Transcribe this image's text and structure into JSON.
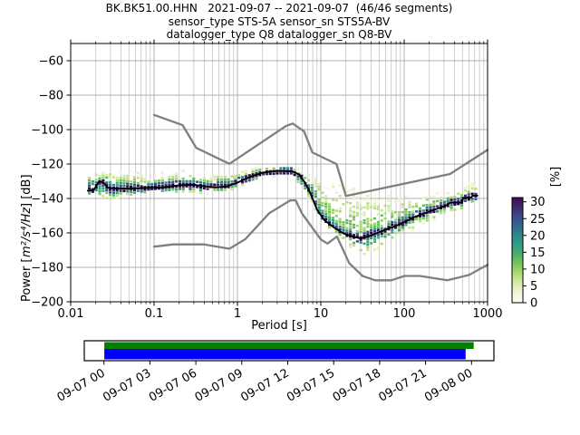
{
  "title": {
    "line1": "BK.BK51.00.HHN   2021-09-07 -- 2021-09-07  (46/46 segments)",
    "line2": "sensor_type STS-5A sensor_sn STS5A-BV",
    "line3": "datalogger_type Q8 datalogger_sn Q8-BV"
  },
  "axes": {
    "xlabel": "Period [s]",
    "ylabel_prefix": "Power [",
    "ylabel_math": "m²/s⁴/Hz",
    "ylabel_suffix": "] [dB]",
    "x_ticks": [
      {
        "value": 0.01,
        "label": "0.01"
      },
      {
        "value": 0.1,
        "label": "0.1"
      },
      {
        "value": 1,
        "label": "1"
      },
      {
        "value": 10,
        "label": "10"
      },
      {
        "value": 100,
        "label": "100"
      },
      {
        "value": 1000,
        "label": "1000"
      }
    ],
    "y_ticks": [
      {
        "value": -60,
        "label": "−60"
      },
      {
        "value": -80,
        "label": "−80"
      },
      {
        "value": -100,
        "label": "−100"
      },
      {
        "value": -120,
        "label": "−120"
      },
      {
        "value": -140,
        "label": "−140"
      },
      {
        "value": -160,
        "label": "−160"
      },
      {
        "value": -180,
        "label": "−180"
      },
      {
        "value": -200,
        "label": "−200"
      }
    ],
    "grid_color_major": "#b0b0b0",
    "grid_color_minor": "#c3c3c3"
  },
  "colorbar": {
    "label": "[%]",
    "ticks": [
      {
        "value": 30,
        "label": "30"
      },
      {
        "value": 25,
        "label": "25"
      },
      {
        "value": 20,
        "label": "20"
      },
      {
        "value": 15,
        "label": "15"
      },
      {
        "value": 10,
        "label": "10"
      },
      {
        "value": 5,
        "label": "5"
      },
      {
        "value": 0,
        "label": "0"
      }
    ],
    "max_pct": 31.3,
    "gradient_bottom_to_top": [
      "#fdfdf0",
      "#f0f6d8",
      "#d8ecae",
      "#afdb76",
      "#7cc65c",
      "#4cb06b",
      "#2f9f81",
      "#2b8b8b",
      "#336890",
      "#3a4d8c",
      "#3c2b68",
      "#430b54"
    ]
  },
  "timeline": {
    "tick_labels": [
      "09-07 00",
      "09-07 03",
      "09-07 06",
      "09-07 09",
      "09-07 12",
      "09-07 15",
      "09-07 18",
      "09-07 21",
      "09-08 00"
    ],
    "bars": [
      {
        "name": "covered-timerange",
        "color": "#007f00",
        "start_frac": 0.001,
        "end_frac": 1.006
      },
      {
        "name": "data-segments",
        "color": "#0000ff",
        "start_frac": 0.001,
        "end_frac": 0.984
      }
    ]
  },
  "chart_data": {
    "type": "heatmap",
    "title": "PPSD probabilistic power spectral density, BK.BK51.00.HHN 2021-09-07, 46/46 segments",
    "xlabel": "Period [s]",
    "ylabel": "Power [m2/s4/Hz] [dB]",
    "xscale": "log",
    "xlim": [
      0.01,
      1000
    ],
    "ylim": [
      -200,
      -50
    ],
    "grid": true,
    "probability_max_pct": 31.3,
    "series": [
      {
        "name": "mean_psd",
        "color": "#000000",
        "points": [
          [
            0.016,
            -135.5
          ],
          [
            0.019,
            -135
          ],
          [
            0.022,
            -130
          ],
          [
            0.025,
            -131
          ],
          [
            0.028,
            -133.8
          ],
          [
            0.035,
            -134.3
          ],
          [
            0.05,
            -134.3
          ],
          [
            0.07,
            -134
          ],
          [
            0.1,
            -133.8
          ],
          [
            0.14,
            -133.3
          ],
          [
            0.2,
            -132.3
          ],
          [
            0.3,
            -132
          ],
          [
            0.4,
            -133
          ],
          [
            0.55,
            -133.5
          ],
          [
            0.75,
            -133
          ],
          [
            1.0,
            -130.8
          ],
          [
            1.4,
            -127.5
          ],
          [
            2.0,
            -125
          ],
          [
            3.0,
            -124
          ],
          [
            4.5,
            -124.2
          ],
          [
            5.5,
            -126
          ],
          [
            6.5,
            -131
          ],
          [
            7.5,
            -137
          ],
          [
            9.0,
            -146.5
          ],
          [
            11,
            -152.5
          ],
          [
            14,
            -156.5
          ],
          [
            19,
            -160.5
          ],
          [
            25,
            -162.3
          ],
          [
            30,
            -163.2
          ],
          [
            40,
            -161.5
          ],
          [
            55,
            -158.8
          ],
          [
            85,
            -155.3
          ],
          [
            140,
            -150.3
          ],
          [
            230,
            -146.6
          ],
          [
            320,
            -144
          ],
          [
            355,
            -142.4
          ],
          [
            495,
            -142.3
          ],
          [
            510,
            -139.6
          ],
          [
            640,
            -139.4
          ],
          [
            655,
            -138.4
          ],
          [
            755,
            -138.3
          ]
        ]
      },
      {
        "name": "noise_model_high_NHNM",
        "color": "#7f7f7f",
        "points": [
          [
            0.1,
            -91.5
          ],
          [
            0.22,
            -97.4
          ],
          [
            0.32,
            -110.6
          ],
          [
            0.8,
            -119.9
          ],
          [
            3.8,
            -98.0
          ],
          [
            4.6,
            -96.5
          ],
          [
            6.3,
            -101.0
          ],
          [
            7.9,
            -113.2
          ],
          [
            15.4,
            -120.0
          ],
          [
            20,
            -138.5
          ],
          [
            354.8,
            -125.8
          ],
          [
            1000,
            -111.8
          ]
        ]
      },
      {
        "name": "noise_model_low_NLNM",
        "color": "#7f7f7f",
        "points": [
          [
            0.1,
            -168.0
          ],
          [
            0.17,
            -166.7
          ],
          [
            0.4,
            -166.7
          ],
          [
            0.8,
            -169.2
          ],
          [
            1.24,
            -163.7
          ],
          [
            2.4,
            -148.6
          ],
          [
            4.3,
            -141.1
          ],
          [
            5.0,
            -141.1
          ],
          [
            6.0,
            -149.0
          ],
          [
            10.0,
            -163.8
          ],
          [
            12.0,
            -166.2
          ],
          [
            15.6,
            -162.1
          ],
          [
            21.9,
            -177.5
          ],
          [
            31.6,
            -185.0
          ],
          [
            45,
            -187.5
          ],
          [
            70,
            -187.5
          ],
          [
            101,
            -185.0
          ],
          [
            154,
            -185.0
          ],
          [
            328,
            -187.5
          ],
          [
            600,
            -184.4
          ],
          [
            1000,
            -178.5
          ]
        ]
      }
    ],
    "histogram_envelope": {
      "columns": [
        "period_s",
        "db_low",
        "db_high",
        "core_low",
        "core_high"
      ],
      "rows": [
        [
          0.016,
          -139,
          -127,
          -137,
          -131
        ],
        [
          0.022,
          -141,
          -124,
          -136,
          -129
        ],
        [
          0.03,
          -141,
          -123,
          -137,
          -130
        ],
        [
          0.05,
          -139,
          -124,
          -136,
          -131
        ],
        [
          0.08,
          -138,
          -126,
          -136,
          -132
        ],
        [
          0.13,
          -137,
          -125,
          -135,
          -131
        ],
        [
          0.2,
          -137,
          -124,
          -134.5,
          -130
        ],
        [
          0.3,
          -137.5,
          -124,
          -134.5,
          -130
        ],
        [
          0.5,
          -138,
          -126,
          -135,
          -131
        ],
        [
          0.8,
          -136,
          -126,
          -133.5,
          -129.5
        ],
        [
          1.2,
          -133,
          -124.5,
          -131,
          -127
        ],
        [
          2,
          -128.5,
          -121.5,
          -126.5,
          -123.5
        ],
        [
          3,
          -127,
          -121,
          -125.5,
          -122.5
        ],
        [
          4.5,
          -127,
          -121,
          -125.5,
          -122.5
        ],
        [
          6,
          -134,
          -124,
          -131,
          -127
        ],
        [
          8,
          -144,
          -128,
          -140,
          -134
        ],
        [
          10,
          -153,
          -129,
          -151,
          -145
        ],
        [
          13,
          -159,
          -130,
          -156,
          -151
        ],
        [
          17,
          -163,
          -131,
          -160,
          -155
        ],
        [
          22,
          -168,
          -132,
          -163,
          -158
        ],
        [
          30,
          -173,
          -134,
          -166,
          -160
        ],
        [
          40,
          -172,
          -136,
          -164,
          -158.5
        ],
        [
          55,
          -168,
          -138,
          -161,
          -156
        ],
        [
          80,
          -163,
          -139,
          -157.5,
          -152.5
        ],
        [
          120,
          -159,
          -139,
          -153.5,
          -148.5
        ],
        [
          180,
          -155,
          -138,
          -150,
          -145.5
        ],
        [
          260,
          -151,
          -137,
          -147.5,
          -143
        ],
        [
          360,
          -148,
          -135,
          -144.5,
          -140.5
        ],
        [
          480,
          -147,
          -134,
          -144,
          -140
        ],
        [
          560,
          -144,
          -132,
          -141.5,
          -137.5
        ],
        [
          700,
          -143,
          -131,
          -141,
          -136.5
        ],
        [
          760,
          -143,
          -132,
          -141,
          -137
        ]
      ]
    }
  }
}
